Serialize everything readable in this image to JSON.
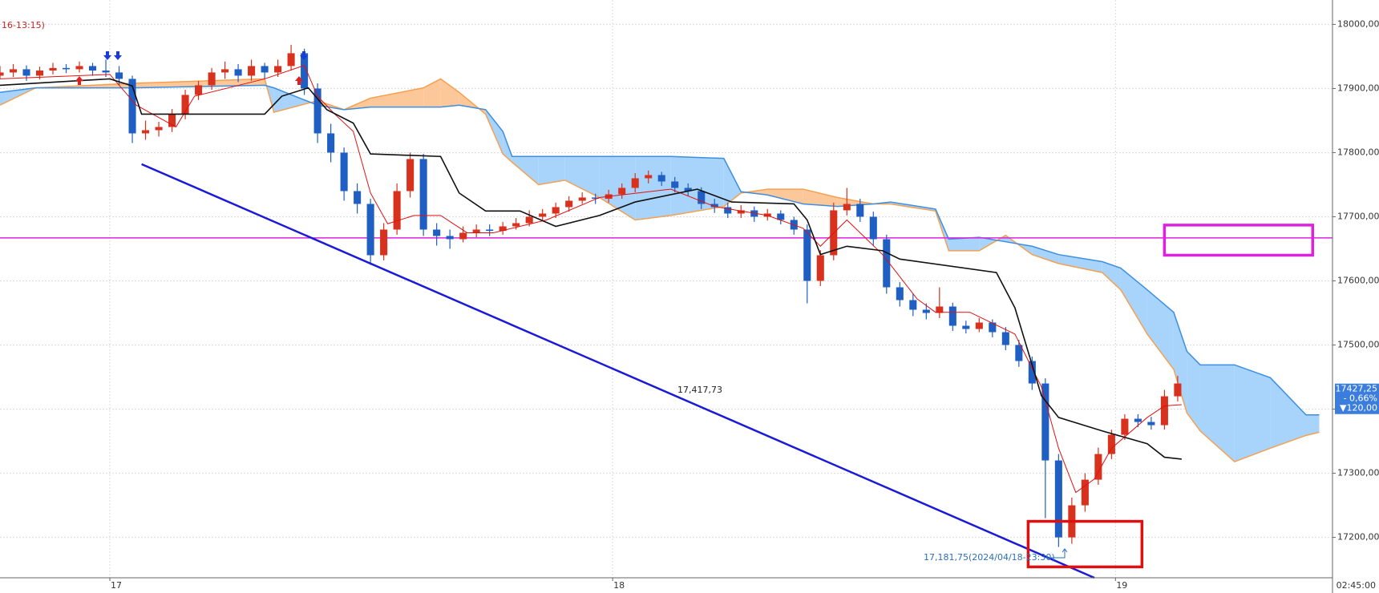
{
  "chart_data": {
    "type": "candlestick",
    "header_text": "16-13:15)",
    "up_color": "#d8321e",
    "down_color": "#1f5fc4",
    "xlim": [
      0,
      100.7
    ],
    "ylim": [
      17137,
      18038
    ],
    "xticks": [
      {
        "value": 8.3,
        "label": "17"
      },
      {
        "value": 46.3,
        "label": "18"
      },
      {
        "value": 84.3,
        "label": "19"
      }
    ],
    "x_end_label": "02:45:00",
    "yticks": [
      {
        "value": 17200,
        "label": "17200,00"
      },
      {
        "value": 17300,
        "label": "17300,00"
      },
      {
        "value": 17400,
        "label": "17400,00"
      },
      {
        "value": 17500,
        "label": "17500,00"
      },
      {
        "value": 17600,
        "label": "17600,00"
      },
      {
        "value": 17700,
        "label": "17700,00"
      },
      {
        "value": 17800,
        "label": "17800,00"
      },
      {
        "value": 17900,
        "label": "17900,00"
      },
      {
        "value": 18000,
        "label": "18000,00"
      }
    ],
    "grid": true,
    "ohlc": [
      [
        17920,
        17935,
        17915,
        17925
      ],
      [
        17925,
        17938,
        17918,
        17930
      ],
      [
        17930,
        17936,
        17912,
        17920
      ],
      [
        17920,
        17934,
        17914,
        17928
      ],
      [
        17928,
        17940,
        17922,
        17932
      ],
      [
        17932,
        17938,
        17924,
        17930
      ],
      [
        17930,
        17942,
        17925,
        17935
      ],
      [
        17935,
        17940,
        17920,
        17928
      ],
      [
        17928,
        17945,
        17918,
        17925
      ],
      [
        17925,
        17935,
        17905,
        17915
      ],
      [
        17915,
        17920,
        17815,
        17830
      ],
      [
        17830,
        17850,
        17820,
        17835
      ],
      [
        17835,
        17848,
        17825,
        17840
      ],
      [
        17840,
        17868,
        17832,
        17860
      ],
      [
        17860,
        17898,
        17852,
        17890
      ],
      [
        17890,
        17912,
        17882,
        17905
      ],
      [
        17905,
        17932,
        17898,
        17925
      ],
      [
        17925,
        17942,
        17915,
        17930
      ],
      [
        17930,
        17938,
        17910,
        17920
      ],
      [
        17920,
        17945,
        17912,
        17935
      ],
      [
        17935,
        17940,
        17915,
        17925
      ],
      [
        17925,
        17945,
        17918,
        17935
      ],
      [
        17935,
        17968,
        17928,
        17955
      ],
      [
        17955,
        17962,
        17890,
        17900
      ],
      [
        17900,
        17908,
        17815,
        17830
      ],
      [
        17830,
        17845,
        17785,
        17800
      ],
      [
        17800,
        17808,
        17725,
        17740
      ],
      [
        17740,
        17752,
        17705,
        17720
      ],
      [
        17720,
        17728,
        17625,
        17640
      ],
      [
        17640,
        17690,
        17632,
        17680
      ],
      [
        17680,
        17752,
        17672,
        17740
      ],
      [
        17740,
        17800,
        17730,
        17790
      ],
      [
        17790,
        17798,
        17670,
        17680
      ],
      [
        17680,
        17690,
        17655,
        17670
      ],
      [
        17670,
        17680,
        17650,
        17665
      ],
      [
        17665,
        17685,
        17660,
        17675
      ],
      [
        17675,
        17688,
        17668,
        17680
      ],
      [
        17680,
        17688,
        17670,
        17678
      ],
      [
        17678,
        17692,
        17672,
        17685
      ],
      [
        17685,
        17698,
        17680,
        17690
      ],
      [
        17690,
        17710,
        17685,
        17700
      ],
      [
        17700,
        17712,
        17695,
        17705
      ],
      [
        17705,
        17722,
        17698,
        17715
      ],
      [
        17715,
        17732,
        17708,
        17725
      ],
      [
        17725,
        17738,
        17720,
        17730
      ],
      [
        17730,
        17736,
        17720,
        17728
      ],
      [
        17728,
        17742,
        17722,
        17735
      ],
      [
        17735,
        17752,
        17728,
        17745
      ],
      [
        17745,
        17768,
        17738,
        17760
      ],
      [
        17760,
        17772,
        17752,
        17765
      ],
      [
        17765,
        17770,
        17748,
        17755
      ],
      [
        17755,
        17762,
        17738,
        17745
      ],
      [
        17745,
        17752,
        17732,
        17740
      ],
      [
        17740,
        17746,
        17712,
        17720
      ],
      [
        17720,
        17728,
        17706,
        17715
      ],
      [
        17715,
        17722,
        17698,
        17705
      ],
      [
        17705,
        17718,
        17698,
        17710
      ],
      [
        17710,
        17716,
        17692,
        17700
      ],
      [
        17700,
        17712,
        17694,
        17705
      ],
      [
        17705,
        17710,
        17688,
        17695
      ],
      [
        17695,
        17700,
        17672,
        17680
      ],
      [
        17680,
        17688,
        17565,
        17600
      ],
      [
        17600,
        17648,
        17592,
        17640
      ],
      [
        17640,
        17722,
        17632,
        17710
      ],
      [
        17710,
        17745,
        17702,
        17720
      ],
      [
        17720,
        17728,
        17692,
        17700
      ],
      [
        17700,
        17708,
        17655,
        17665
      ],
      [
        17665,
        17672,
        17580,
        17590
      ],
      [
        17590,
        17598,
        17560,
        17570
      ],
      [
        17570,
        17580,
        17545,
        17555
      ],
      [
        17555,
        17565,
        17540,
        17550
      ],
      [
        17550,
        17590,
        17542,
        17560
      ],
      [
        17560,
        17566,
        17522,
        17530
      ],
      [
        17530,
        17538,
        17518,
        17525
      ],
      [
        17525,
        17542,
        17520,
        17535
      ],
      [
        17535,
        17540,
        17512,
        17520
      ],
      [
        17520,
        17528,
        17492,
        17500
      ],
      [
        17500,
        17508,
        17466,
        17475
      ],
      [
        17475,
        17482,
        17430,
        17440
      ],
      [
        17440,
        17448,
        17230,
        17320
      ],
      [
        17320,
        17330,
        17185,
        17200
      ],
      [
        17200,
        17262,
        17190,
        17250
      ],
      [
        17250,
        17300,
        17240,
        17290
      ],
      [
        17290,
        17340,
        17282,
        17330
      ],
      [
        17330,
        17368,
        17322,
        17360
      ],
      [
        17360,
        17392,
        17352,
        17385
      ],
      [
        17385,
        17392,
        17372,
        17380
      ],
      [
        17380,
        17388,
        17368,
        17375
      ],
      [
        17375,
        17430,
        17368,
        17420
      ],
      [
        17420,
        17452,
        17412,
        17440
      ]
    ],
    "lines": [
      {
        "color": "#e01010",
        "x": [
          0,
          8.3,
          10.3,
          13.3,
          14.7,
          20,
          23,
          24,
          25.3,
          26.7,
          28,
          29.3,
          31.3,
          33.3,
          35.3,
          37.3,
          41.3,
          45.3,
          50.7,
          54,
          58,
          60.7,
          62,
          64,
          66.7,
          69.3,
          70.7,
          73.3,
          76.7,
          78.7,
          80,
          81.3,
          82.7,
          84,
          86.7,
          88,
          89.3
        ],
        "values": [
          17915,
          17922,
          17874,
          17840,
          17888,
          17915,
          17936,
          17888,
          17860,
          17833,
          17737,
          17689,
          17702,
          17702,
          17675,
          17675,
          17695,
          17730,
          17743,
          17716,
          17702,
          17682,
          17654,
          17695,
          17641,
          17572,
          17551,
          17551,
          17517,
          17435,
          17339,
          17270,
          17291,
          17339,
          17387,
          17405,
          17407
        ]
      },
      {
        "color": "#111111",
        "x": [
          0,
          8.3,
          10,
          10.7,
          20,
          21.3,
          23.3,
          24.7,
          26.7,
          28,
          33.3,
          34.7,
          36.7,
          39.3,
          42,
          45.3,
          48,
          52.7,
          55.3,
          60,
          61,
          62,
          64,
          66.7,
          68,
          75.3,
          76.7,
          78.7,
          80,
          83.3,
          86.7,
          88,
          89.3
        ],
        "values": [
          17905,
          17915,
          17904,
          17860,
          17860,
          17888,
          17901,
          17867,
          17846,
          17798,
          17794,
          17737,
          17709,
          17709,
          17685,
          17702,
          17723,
          17743,
          17723,
          17720,
          17695,
          17641,
          17654,
          17647,
          17634,
          17613,
          17558,
          17421,
          17387,
          17366,
          17346,
          17325,
          17322
        ]
      }
    ],
    "cloud": {
      "color_a": "#f5a050",
      "fill_a": "#fcc89a",
      "color_b": "#3c8fe0",
      "fill_b": "#a8d4fb",
      "x": [
        0,
        2.7,
        10,
        20,
        20.7,
        24,
        26,
        28,
        32,
        33.3,
        34.7,
        36.7,
        38,
        38.7,
        40.7,
        42.7,
        45.3,
        48,
        50.7,
        54.7,
        56,
        58,
        60.7,
        63.3,
        66,
        67.3,
        70.7,
        71.7,
        74,
        76,
        78,
        80,
        83.3,
        84.7,
        86.7,
        88.7,
        89.7,
        90.7,
        93.3,
        96,
        98.7,
        99.7
      ],
      "span_a": [
        17874,
        17901,
        17908,
        17915,
        17863,
        17881,
        17867,
        17885,
        17901,
        17915,
        17894,
        17860,
        17798,
        17785,
        17750,
        17757,
        17730,
        17695,
        17702,
        17716,
        17737,
        17743,
        17743,
        17730,
        17720,
        17720,
        17709,
        17647,
        17647,
        17671,
        17641,
        17627,
        17613,
        17586,
        17517,
        17462,
        17394,
        17366,
        17318,
        17339,
        17359,
        17364
      ],
      "span_b": [
        17894,
        17901,
        17901,
        17905,
        17901,
        17874,
        17867,
        17871,
        17871,
        17871,
        17874,
        17867,
        17833,
        17794,
        17794,
        17794,
        17794,
        17794,
        17794,
        17791,
        17739,
        17734,
        17720,
        17716,
        17720,
        17723,
        17712,
        17665,
        17668,
        17661,
        17654,
        17641,
        17630,
        17620,
        17586,
        17551,
        17490,
        17469,
        17469,
        17449,
        17391,
        17391
      ]
    },
    "hline": {
      "value": 17667,
      "color": "#e020e0"
    },
    "trendline": {
      "x": [
        10.7,
        82.7
      ],
      "values": [
        17782,
        17137
      ],
      "color": "#1a1ad8"
    },
    "boxes": [
      {
        "x": [
          88,
          99.2
        ],
        "y": [
          17640,
          17687
        ],
        "color": "#e020e0"
      },
      {
        "x": [
          77.7,
          86.3
        ],
        "y": [
          17154,
          17225
        ],
        "color": "#e01010"
      }
    ],
    "annotations": [
      "17,417,73",
      "17,181,75(2024/04/18-23:30)"
    ],
    "last_price": {
      "value": 17427.25,
      "label": "17427,25",
      "change": "- 0,66%",
      "diff": "▼120,00"
    }
  }
}
